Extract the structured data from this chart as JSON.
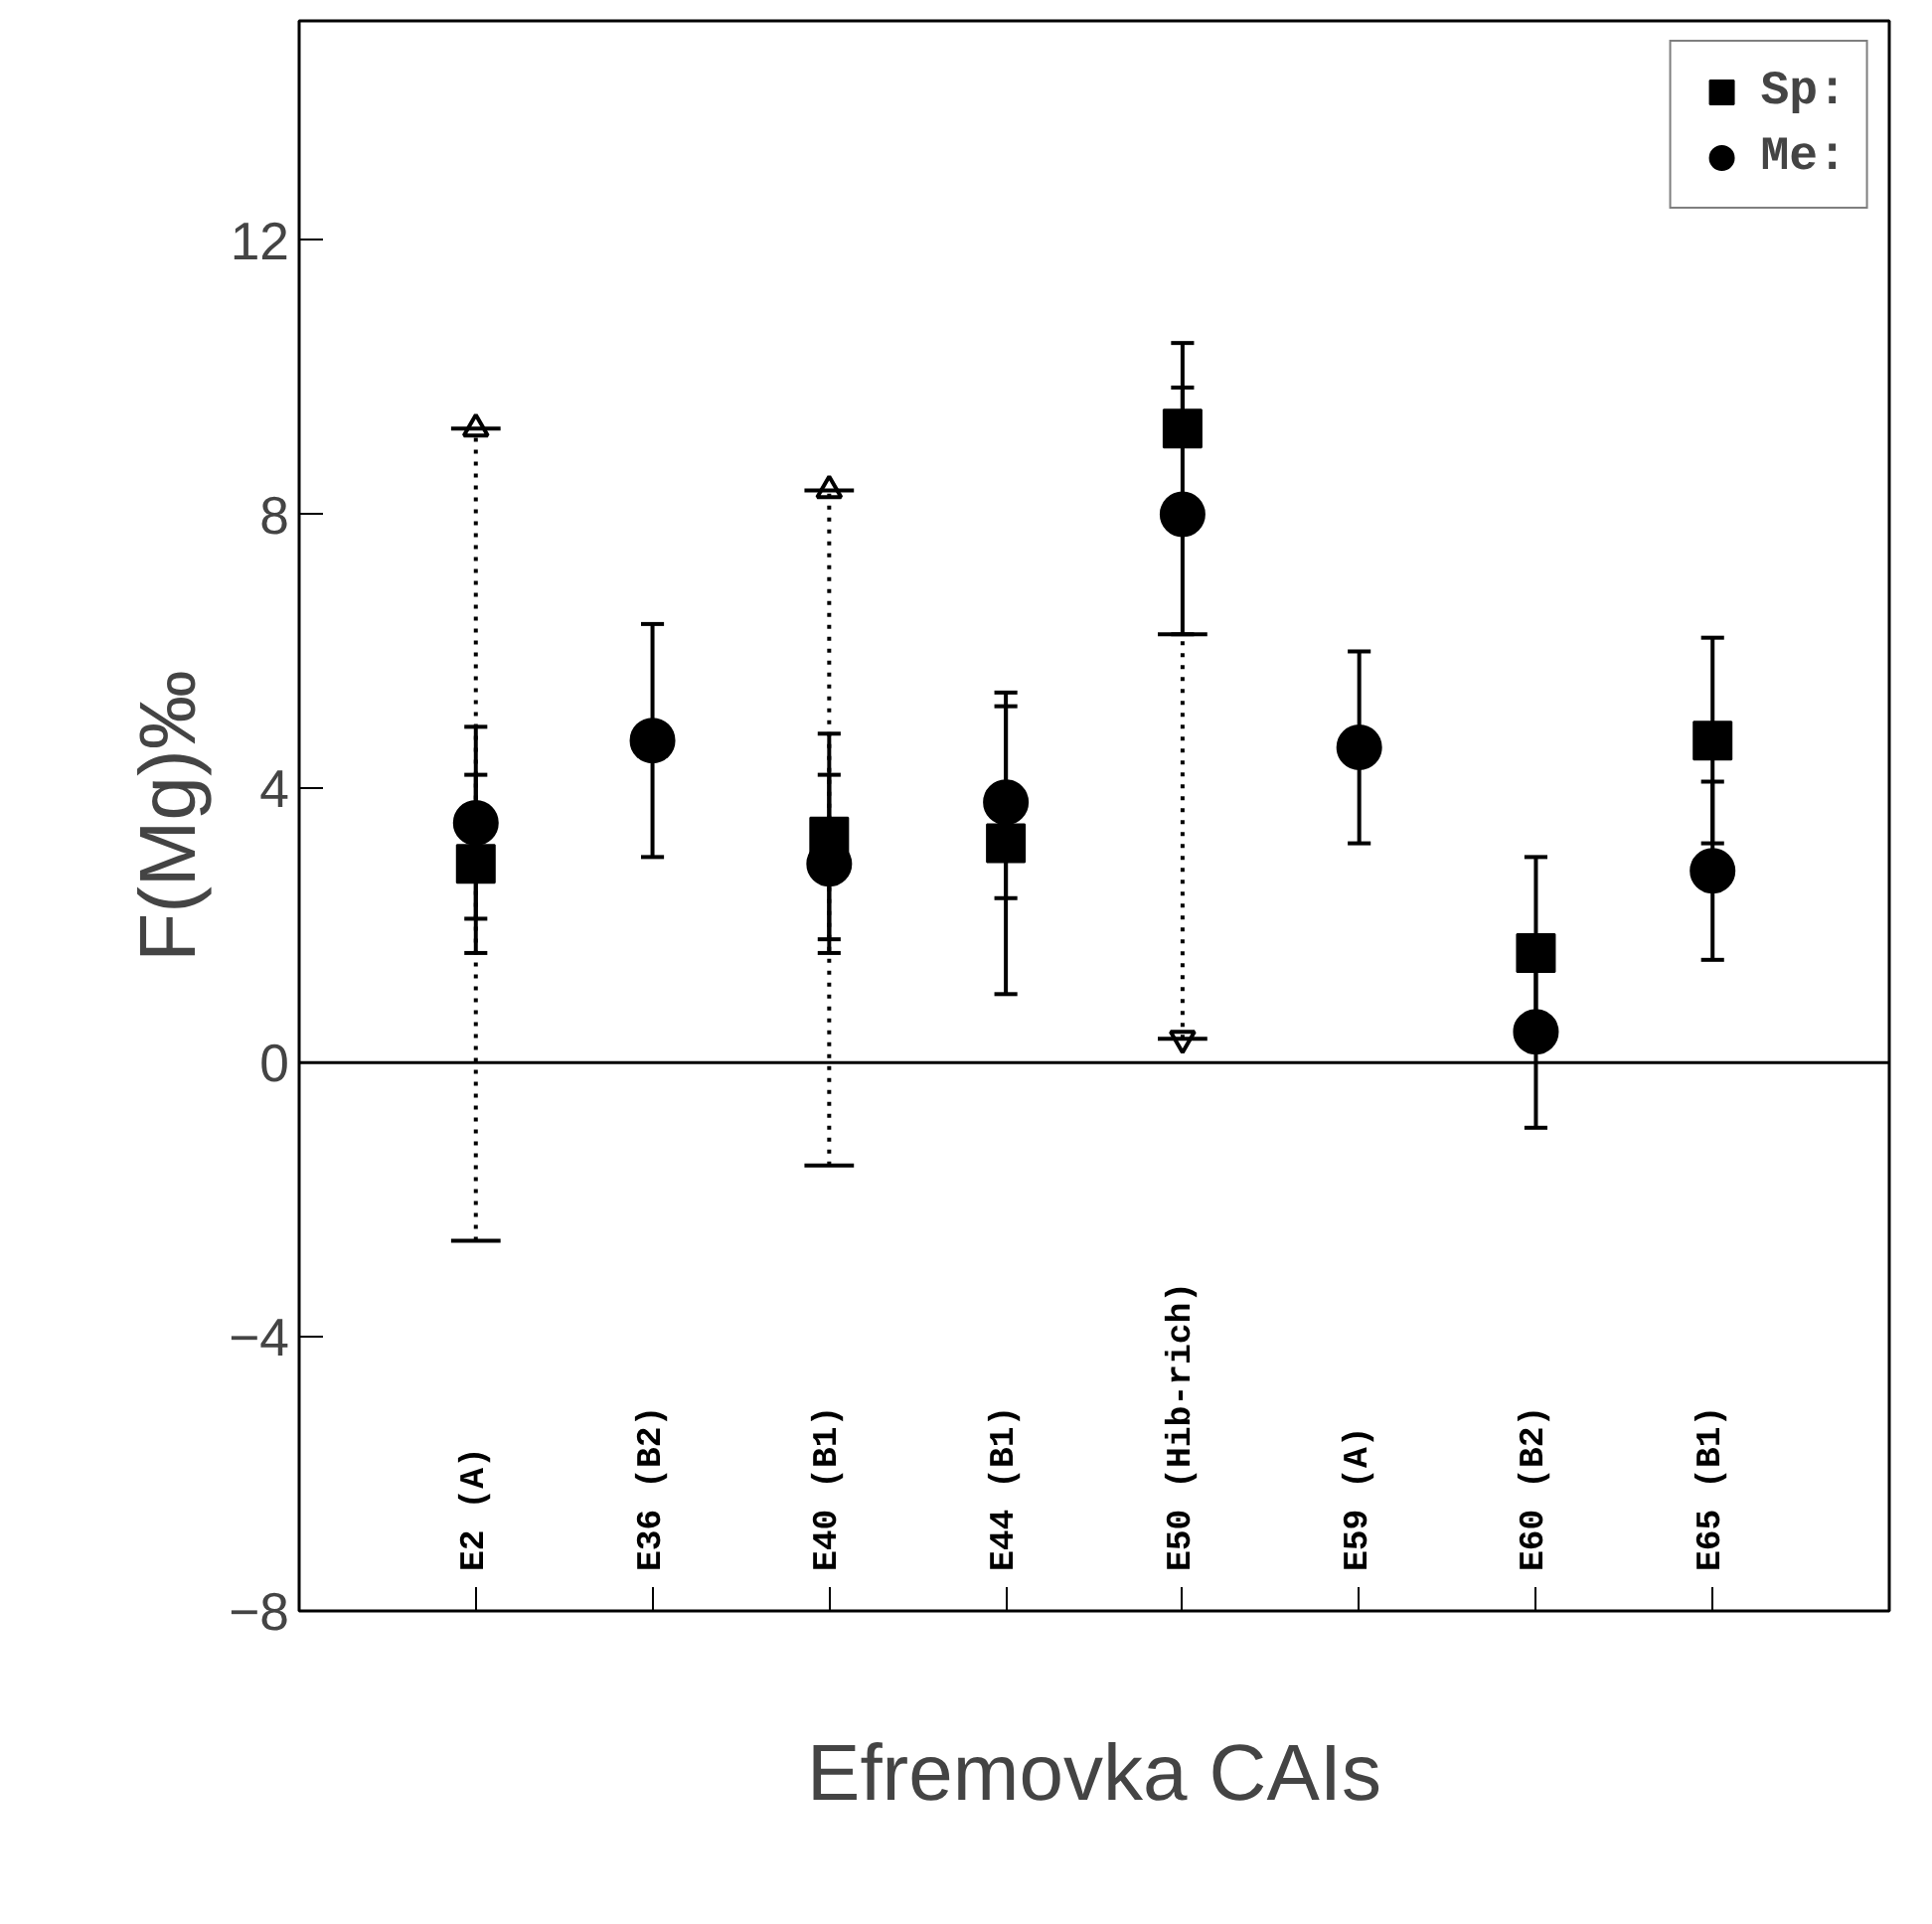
{
  "chart_data": {
    "type": "scatter",
    "xlabel": "Efremovka CAIs",
    "ylabel": "F(Mg)‰",
    "categories": [
      "E2 (A)",
      "E36 (B2)",
      "E40 (B1)",
      "E44 (B1)",
      "E50 (Hib-rich)",
      "E59 (A)",
      "E60 (B2)",
      "E65 (B1)"
    ],
    "series": [
      {
        "name": "Sp:",
        "color": "#000000",
        "marker": "square",
        "values": [
          2.9,
          null,
          3.3,
          3.2,
          9.25,
          null,
          1.6,
          4.7
        ],
        "errors": [
          [
            1.6,
            4.2
          ],
          null,
          [
            1.8,
            4.8
          ],
          [
            1.0,
            5.4
          ],
          [
            9.25,
            10.5
          ],
          null,
          [
            0.2,
            3.0
          ],
          [
            3.2,
            6.2
          ]
        ]
      },
      {
        "name": "Me:",
        "color": "#000000",
        "marker": "circle",
        "values": [
          3.5,
          4.7,
          2.9,
          3.8,
          8.0,
          4.6,
          0.45,
          2.8
        ],
        "errors": [
          [
            2.1,
            4.9
          ],
          [
            3.0,
            6.4
          ],
          [
            1.6,
            4.2
          ],
          [
            2.4,
            5.2
          ],
          [
            6.25,
            9.85
          ],
          [
            3.2,
            6.0
          ],
          [
            -0.95,
            1.85
          ],
          [
            1.5,
            4.1
          ]
        ]
      },
      {
        "color": "#000000",
        "marker": "triangle",
        "line_style": "dotted",
        "values": [
          9.25,
          null,
          8.35,
          null,
          0.35,
          null,
          null,
          null
        ],
        "errors": [
          [
            -2.6,
            9.25
          ],
          null,
          [
            -1.5,
            8.35
          ],
          null,
          [
            0.35,
            6.25
          ],
          null,
          null,
          null
        ]
      }
    ],
    "ylim": [
      -8,
      15.2
    ],
    "yticks": [
      -8,
      -4,
      0,
      4,
      8,
      12
    ],
    "ref_lines": [
      {
        "axis": "y",
        "value": 0
      }
    ],
    "grid": false,
    "legend": "top right"
  }
}
